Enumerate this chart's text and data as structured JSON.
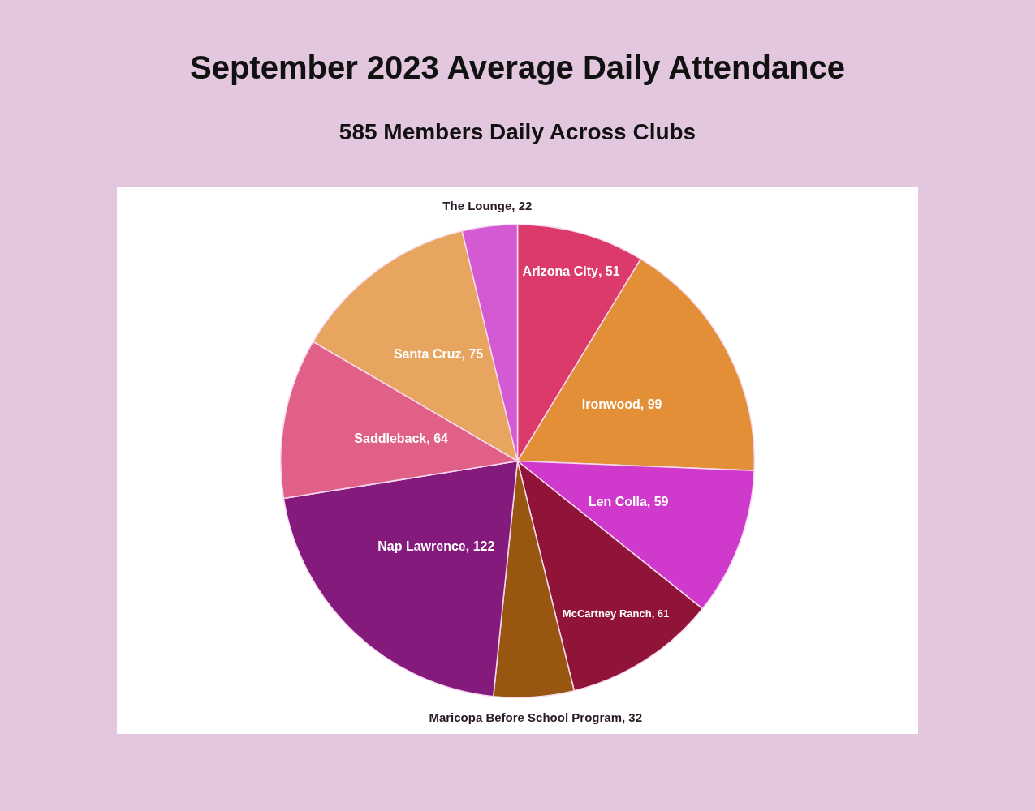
{
  "chart_data": {
    "type": "pie",
    "title": "September 2023 Average Daily Attendance",
    "subtitle": "585 Members Daily Across Clubs",
    "categories": [
      "Arizona City",
      "Ironwood",
      "Len Colla",
      "McCartney Ranch",
      "Maricopa Before School Program",
      "Nap Lawrence",
      "Saddleback",
      "Santa Cruz",
      "The Lounge"
    ],
    "values": [
      51,
      99,
      59,
      61,
      32,
      122,
      64,
      75,
      22
    ],
    "value_labels": [
      ", 51",
      ", 99",
      ", 59",
      ", 61",
      ", 32",
      ", 122",
      ", 64",
      ", 75",
      ", 22"
    ],
    "colors": [
      "#dc3a6b",
      "#e38f38",
      "#d03acc",
      "#901338",
      "#985611",
      "#851a7d",
      "#e06087",
      "#e8a55f",
      "#d35ad3"
    ]
  }
}
